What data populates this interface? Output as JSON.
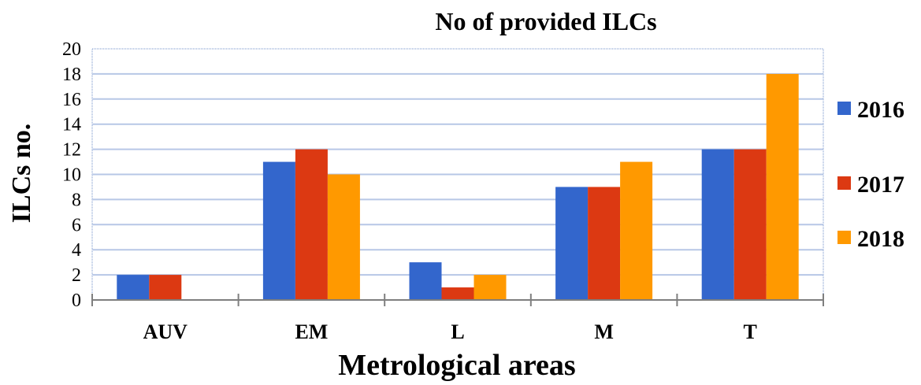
{
  "chart_data": {
    "type": "bar",
    "title": "No of provided ILCs",
    "xlabel": "Metrological areas",
    "ylabel": "ILCs  no.",
    "categories": [
      "AUV",
      "EM",
      "L",
      "M",
      "T"
    ],
    "series": [
      {
        "name": "2016",
        "values": [
          2,
          11,
          3,
          9,
          12
        ],
        "color": "#3366CC"
      },
      {
        "name": "2017",
        "values": [
          2,
          12,
          1,
          9,
          12
        ],
        "color": "#DC3912"
      },
      {
        "name": "2018",
        "values": [
          0,
          10,
          2,
          11,
          18
        ],
        "color": "#FF9900"
      }
    ],
    "ylim": [
      0,
      20
    ],
    "yticks": [
      "0",
      "2",
      "4",
      "6",
      "8",
      "10",
      "12",
      "14",
      "16",
      "18",
      "20"
    ],
    "grid": true,
    "legend_position": "right"
  }
}
